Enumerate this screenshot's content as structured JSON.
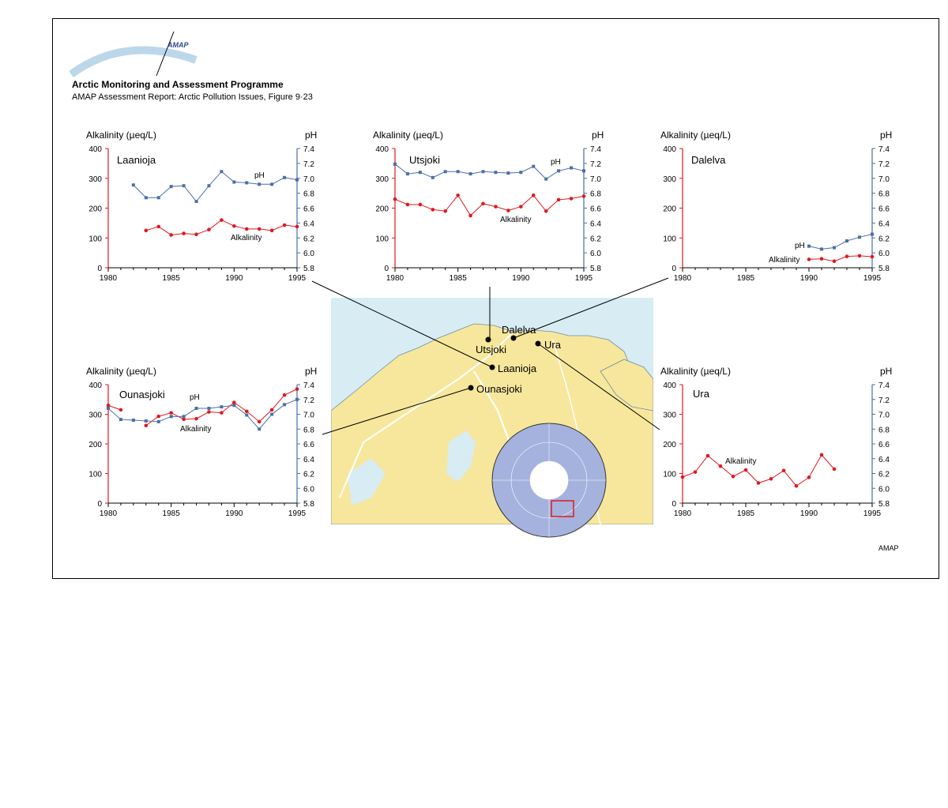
{
  "header": {
    "org_title": "Arctic Monitoring and Assessment Programme",
    "subtitle": "AMAP Assessment Report: Arctic Pollution Issues, Figure 9·23",
    "logo_text": "AMAP",
    "credit": "AMAP"
  },
  "colors": {
    "alkalinity": "#e0191f",
    "ph": "#4a6fa8",
    "sea": "#d7ecf3",
    "land": "#f7e79c",
    "rivers": "#ffffff",
    "globe": "#8d9dcf"
  },
  "map": {
    "places": [
      "Dalelva",
      "Utsjoki",
      "Ura",
      "Laanioja",
      "Ounasjoki"
    ]
  },
  "chart_data": [
    {
      "type": "line",
      "title": "Laanioja",
      "xlabel": "",
      "ylabel_left": "Alkalinity (µeq/L)",
      "ylabel_right": "pH",
      "xlim": [
        1980,
        1995
      ],
      "ylim_left": [
        0,
        400
      ],
      "ylim_right": [
        5.8,
        7.4
      ],
      "x_ticks": [
        "1980",
        "1985",
        "1990",
        "1995"
      ],
      "y_ticks_left": [
        "0",
        "100",
        "200",
        "300",
        "400"
      ],
      "y_ticks_right": [
        "5.8",
        "6.0",
        "6.2",
        "6.4",
        "6.6",
        "6.8",
        "7.0",
        "7.2",
        "7.4"
      ],
      "series": [
        {
          "name": "Alkalinity",
          "axis": "left",
          "x": [
            1983,
            1984,
            1985,
            1986,
            1987,
            1988,
            1989,
            1990,
            1991,
            1992,
            1993,
            1994,
            1995
          ],
          "y": [
            125,
            138,
            110,
            115,
            112,
            128,
            160,
            140,
            130,
            130,
            125,
            143,
            138
          ]
        },
        {
          "name": "pH",
          "axis": "right",
          "x": [
            1982,
            1983,
            1984,
            1985,
            1986,
            1987,
            1988,
            1989,
            1990,
            1991,
            1992,
            1993,
            1994,
            1995
          ],
          "y": [
            6.91,
            6.74,
            6.74,
            6.89,
            6.9,
            6.69,
            6.9,
            7.09,
            6.95,
            6.94,
            6.92,
            6.92,
            7.01,
            6.98
          ]
        }
      ]
    },
    {
      "type": "line",
      "title": "Utsjoki",
      "xlabel": "",
      "ylabel_left": "Alkalinity (µeq/L)",
      "ylabel_right": "pH",
      "xlim": [
        1980,
        1995
      ],
      "ylim_left": [
        0,
        400
      ],
      "ylim_right": [
        5.8,
        7.4
      ],
      "x_ticks": [
        "1980",
        "1985",
        "1990",
        "1995"
      ],
      "y_ticks_left": [
        "0",
        "100",
        "200",
        "300",
        "400"
      ],
      "y_ticks_right": [
        "5.8",
        "6.0",
        "6.2",
        "6.4",
        "6.6",
        "6.8",
        "7.0",
        "7.2",
        "7.4"
      ],
      "series": [
        {
          "name": "Alkalinity",
          "axis": "left",
          "x": [
            1980,
            1981,
            1982,
            1983,
            1984,
            1985,
            1986,
            1987,
            1988,
            1989,
            1990,
            1991,
            1992,
            1993,
            1994,
            1995
          ],
          "y": [
            230,
            212,
            212,
            195,
            190,
            243,
            175,
            215,
            205,
            192,
            205,
            243,
            190,
            228,
            232,
            240
          ]
        },
        {
          "name": "pH",
          "axis": "right",
          "x": [
            1980,
            1981,
            1982,
            1983,
            1984,
            1985,
            1986,
            1987,
            1988,
            1989,
            1990,
            1991,
            1992,
            1993,
            1994,
            1995
          ],
          "y": [
            7.19,
            7.06,
            7.08,
            7.01,
            7.09,
            7.09,
            7.06,
            7.09,
            7.08,
            7.07,
            7.08,
            7.16,
            6.99,
            7.1,
            7.14,
            7.1
          ]
        }
      ]
    },
    {
      "type": "line",
      "title": "Dalelva",
      "xlabel": "",
      "ylabel_left": "Alkalinity (µeq/L)",
      "ylabel_right": "pH",
      "xlim": [
        1980,
        1995
      ],
      "ylim_left": [
        0,
        400
      ],
      "ylim_right": [
        5.8,
        7.4
      ],
      "x_ticks": [
        "1980",
        "1985",
        "1990",
        "1995"
      ],
      "y_ticks_left": [
        "0",
        "100",
        "200",
        "300",
        "400"
      ],
      "y_ticks_right": [
        "5.8",
        "6.0",
        "6.2",
        "6.4",
        "6.6",
        "6.8",
        "7.0",
        "7.2",
        "7.4"
      ],
      "series": [
        {
          "name": "Alkalinity",
          "axis": "left",
          "x": [
            1990,
            1991,
            1992,
            1993,
            1994,
            1995
          ],
          "y": [
            28,
            30,
            22,
            38,
            40,
            37
          ]
        },
        {
          "name": "pH",
          "axis": "right",
          "x": [
            1990,
            1991,
            1992,
            1993,
            1994,
            1995
          ],
          "y": [
            6.09,
            6.05,
            6.07,
            6.16,
            6.21,
            6.25
          ]
        }
      ]
    },
    {
      "type": "line",
      "title": "Ounasjoki",
      "xlabel": "",
      "ylabel_left": "Alkalinity (µeq/L)",
      "ylabel_right": "pH",
      "xlim": [
        1980,
        1995
      ],
      "ylim_left": [
        0,
        400
      ],
      "ylim_right": [
        5.8,
        7.4
      ],
      "x_ticks": [
        "1980",
        "1985",
        "1990",
        "1995"
      ],
      "y_ticks_left": [
        "0",
        "100",
        "200",
        "300",
        "400"
      ],
      "y_ticks_right": [
        "5.8",
        "6.0",
        "6.2",
        "6.4",
        "6.6",
        "6.8",
        "7.0",
        "7.2",
        "7.4"
      ],
      "series": [
        {
          "name": "Alkalinity",
          "axis": "left",
          "x": [
            1980,
            1981,
            1983,
            1984,
            1985,
            1986,
            1987,
            1988,
            1989,
            1990,
            1991,
            1992,
            1993,
            1994,
            1995
          ],
          "y": [
            330,
            315,
            262,
            293,
            305,
            283,
            285,
            308,
            305,
            340,
            310,
            275,
            315,
            365,
            385
          ]
        },
        {
          "name": "pH",
          "axis": "right",
          "x": [
            1980,
            1981,
            1982,
            1983,
            1984,
            1985,
            1986,
            1987,
            1988,
            1989,
            1990,
            1991,
            1992,
            1993,
            1994,
            1995
          ],
          "y": [
            7.08,
            6.93,
            6.92,
            6.91,
            6.9,
            6.97,
            6.97,
            7.08,
            7.08,
            7.1,
            7.12,
            6.99,
            6.8,
            7.0,
            7.13,
            7.2
          ]
        }
      ]
    },
    {
      "type": "line",
      "title": "Ura",
      "xlabel": "",
      "ylabel_left": "Alkalinity (µeq/L)",
      "ylabel_right": "pH",
      "xlim": [
        1980,
        1995
      ],
      "ylim_left": [
        0,
        400
      ],
      "ylim_right": [
        5.8,
        7.4
      ],
      "x_ticks": [
        "1980",
        "1985",
        "1990",
        "1995"
      ],
      "y_ticks_left": [
        "0",
        "100",
        "200",
        "300",
        "400"
      ],
      "y_ticks_right": [
        "5.8",
        "6.0",
        "6.2",
        "6.4",
        "6.6",
        "6.8",
        "7.0",
        "7.2",
        "7.4"
      ],
      "series": [
        {
          "name": "Alkalinity",
          "axis": "left",
          "x": [
            1980,
            1981,
            1982,
            1983,
            1984,
            1985,
            1986,
            1987,
            1988,
            1989,
            1990,
            1991,
            1992
          ],
          "y": [
            88,
            105,
            160,
            125,
            90,
            112,
            68,
            82,
            110,
            58,
            87,
            163,
            115
          ]
        }
      ]
    }
  ]
}
